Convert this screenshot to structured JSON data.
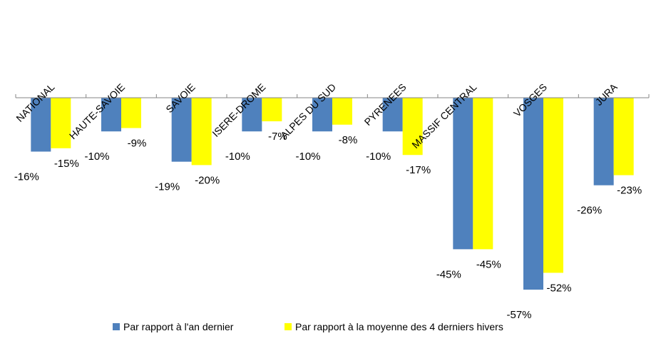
{
  "chart_data": {
    "type": "bar",
    "categories": [
      "NATIONAL",
      "HAUTE-SAVOIE",
      "SAVOIE",
      "ISERE-DROME",
      "ALPES DU SUD",
      "PYRENEES",
      "MASSIF CENTRAL",
      "VOSGES",
      "JURA"
    ],
    "series": [
      {
        "name": "Par rapport à l'an dernier",
        "color": "#4f81bd",
        "values": [
          -16,
          -10,
          -19,
          -10,
          -10,
          -10,
          -45,
          -57,
          -26
        ],
        "labels": [
          "-16%",
          "-10%",
          "-19%",
          "-10%",
          "-10%",
          "-10%",
          "-45%",
          "-57%",
          "-26%"
        ]
      },
      {
        "name": "Par rapport à la moyenne des 4 derniers hivers",
        "color": "#ffff00",
        "values": [
          -15,
          -9,
          -20,
          -7,
          -8,
          -17,
          -45,
          -52,
          -23
        ],
        "labels": [
          "-15%",
          "-9%",
          "-20%",
          "-7%",
          "-8%",
          "-17%",
          "-45%",
          "-52%",
          "-23%"
        ]
      }
    ],
    "ylim": [
      -57,
      0
    ],
    "grid": false,
    "legend": "bottom",
    "axis_color": "#868686"
  }
}
